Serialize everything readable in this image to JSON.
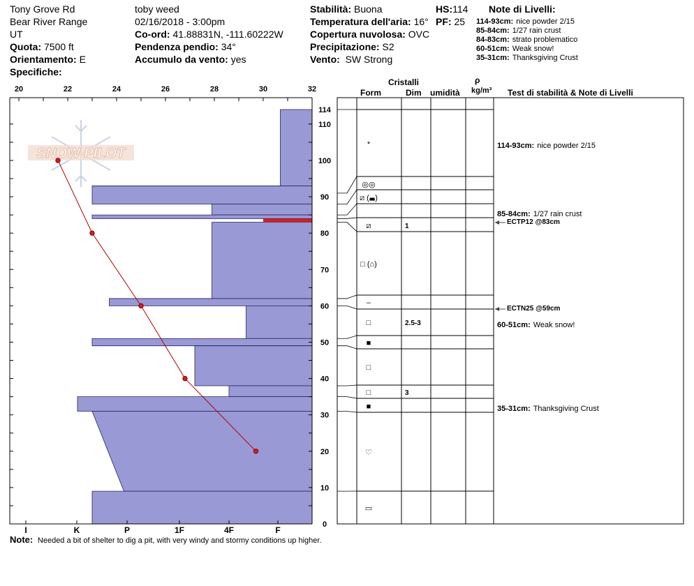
{
  "header": {
    "location": "Tony Grove Rd",
    "range": "Bear River Range",
    "state": "UT",
    "elevation_label": "Quota:",
    "elevation_value": "7500 ft",
    "aspect_label": "Orientamento:",
    "aspect_value": "E",
    "specifics_label": "Specifiche:",
    "observer": "toby weed",
    "datetime": "02/16/2018 - 3:00pm",
    "coords_label": "Co-ord:",
    "coords_value": "41.88831N, -111.60222W",
    "slope_label": "Pendenza pendio:",
    "slope_value": "34°",
    "wind_loading_label": "Accumulo da vento:",
    "wind_loading_value": "yes",
    "stability_label": "Stabilità:",
    "stability_value": "Buona",
    "air_temp_label": "Temperatura dell'aria:",
    "air_temp_value": "16°",
    "cloud_label": "Copertura nuvolosa:",
    "cloud_value": "OVC",
    "precip_label": "Precipitazione:",
    "precip_value": "S2",
    "wind_label": "Vento:",
    "wind_value": "SW Strong",
    "hs_label": "HS:",
    "hs_value": "114",
    "pf_label": "PF:",
    "pf_value": "25"
  },
  "layer_notes_header": {
    "title": "Note di Livelli:",
    "items": [
      {
        "range": "114-93cm:",
        "text": "nice powder 2/15"
      },
      {
        "range": "85-84cm:",
        "text": "1/27 rain crust"
      },
      {
        "range": "84-83cm:",
        "text": "strato problematico"
      },
      {
        "range": "60-51cm:",
        "text": "Weak snow!"
      },
      {
        "range": "35-31cm:",
        "text": "Thanksgiving Crust"
      }
    ]
  },
  "table_headers": {
    "crystals": "Cristalli",
    "form": "Form",
    "dim": "Dim",
    "moisture": "umidità",
    "rho": "ρ",
    "density_unit": "kg/m³",
    "tests": "Test di stabilità & Note di Livelli"
  },
  "layers_table": [
    {
      "form": "*",
      "dim": ""
    },
    {
      "form": "◎◎",
      "dim": ""
    },
    {
      "form": "⧄ (◛)",
      "dim": ""
    },
    {
      "form": "",
      "dim": ""
    },
    {
      "form": "⧄",
      "dim": "1"
    },
    {
      "form": "□ (⌂)",
      "dim": ""
    },
    {
      "form": "–",
      "dim": ""
    },
    {
      "form": "□",
      "dim": "2.5-3"
    },
    {
      "form": "■",
      "dim": ""
    },
    {
      "form": "□",
      "dim": ""
    },
    {
      "form": "□",
      "dim": "3"
    },
    {
      "form": "■",
      "dim": ""
    },
    {
      "form": "♡",
      "dim": ""
    },
    {
      "form": "▭",
      "dim": ""
    }
  ],
  "right_notes": [
    {
      "range": "114-93cm:",
      "text": "nice powder 2/15"
    },
    {
      "range": "85-84cm:",
      "text": "1/27 rain crust"
    },
    {
      "range": "",
      "text": "ECTP12 @83cm"
    },
    {
      "range": "",
      "text": "ECTN25 @59cm"
    },
    {
      "range": "60-51cm:",
      "text": "Weak snow!"
    },
    {
      "range": "35-31cm:",
      "text": "Thanksgiving Crust"
    }
  ],
  "note": {
    "label": "Note:",
    "text": "Needed a bit of shelter to dig a pit, with very windy and stormy conditions up higher."
  },
  "watermark": "SNOW PILOT",
  "colors": {
    "hardness_fill": "#9999d5",
    "hardness_stroke": "#22225e",
    "temp_line": "#b00000",
    "temp_point": "#cc2222",
    "problem_layer": "#cc2222"
  },
  "chart_data": {
    "type": "snow_profile",
    "temperature_axis": {
      "ticks": [
        "20",
        "22",
        "24",
        "26",
        "28",
        "30",
        "32"
      ],
      "range": [
        20,
        32
      ]
    },
    "height_axis": {
      "ticks": [
        "114",
        "110",
        "100",
        "90",
        "80",
        "70",
        "60",
        "50",
        "40",
        "30",
        "20",
        "10",
        "0"
      ],
      "range": [
        0,
        114
      ]
    },
    "hardness_axis": {
      "labels": [
        "I",
        "K",
        "P",
        "1F",
        "4F",
        "F"
      ]
    },
    "temperature_profile": [
      {
        "height": 100,
        "temp": 21.6
      },
      {
        "height": 80,
        "temp": 23.0
      },
      {
        "height": 60,
        "temp": 25.0
      },
      {
        "height": 40,
        "temp": 26.8
      },
      {
        "height": 20,
        "temp": 29.7
      }
    ],
    "hardness_layers": [
      {
        "top": 114,
        "bottom": 93,
        "hardness_left": 30.7
      },
      {
        "top": 93,
        "bottom": 88,
        "hardness_left": 23.0
      },
      {
        "top": 88,
        "bottom": 85,
        "hardness_left": 27.9
      },
      {
        "top": 85,
        "bottom": 84,
        "hardness_left": 23.0
      },
      {
        "top": 83,
        "bottom": 62,
        "hardness_left": 27.9
      },
      {
        "top": 62,
        "bottom": 60,
        "hardness_left": 23.7
      },
      {
        "top": 60,
        "bottom": 51,
        "hardness_left": 29.3
      },
      {
        "top": 51,
        "bottom": 49,
        "hardness_left": 23.0
      },
      {
        "top": 49,
        "bottom": 38,
        "hardness_left": 27.2
      },
      {
        "top": 38,
        "bottom": 35,
        "hardness_left": 28.6
      },
      {
        "top": 35,
        "bottom": 31,
        "hardness_left": 22.4
      },
      {
        "top": 31,
        "bottom": 9,
        "hardness_left_top": 23.0,
        "hardness_left_bottom": 24.3
      },
      {
        "top": 9,
        "bottom": 0,
        "hardness_left": 23.0
      }
    ],
    "problem_layer": {
      "top": 84,
      "bottom": 83,
      "hardness_left": 30.0
    },
    "layer_boundaries": [
      114,
      95,
      91,
      88,
      85,
      83,
      80,
      62,
      59,
      51,
      49,
      38,
      35,
      31,
      9
    ],
    "stability_tests": [
      {
        "label": "ECTP12 @83cm",
        "height": 83
      },
      {
        "label": "ECTN25 @59cm",
        "height": 59
      }
    ]
  }
}
